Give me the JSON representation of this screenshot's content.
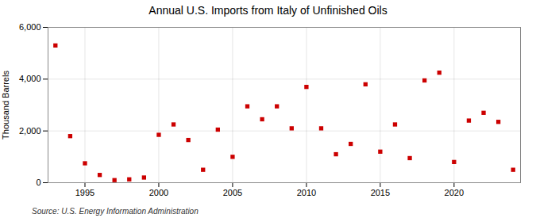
{
  "chart_data": {
    "type": "scatter",
    "title": "Annual U.S. Imports from Italy of Unfinished Oils",
    "ylabel": "Thousand Barrels",
    "source": "Source: U.S. Energy Information Administration",
    "x": [
      1993,
      1994,
      1995,
      1996,
      1997,
      1998,
      1999,
      2000,
      2001,
      2002,
      2003,
      2004,
      2005,
      2006,
      2007,
      2008,
      2009,
      2010,
      2011,
      2012,
      2013,
      2014,
      2015,
      2016,
      2017,
      2018,
      2019,
      2020,
      2021,
      2022,
      2023,
      2024
    ],
    "values": [
      5300,
      1800,
      750,
      300,
      100,
      130,
      200,
      1850,
      2250,
      1650,
      500,
      2050,
      1000,
      2950,
      2450,
      2950,
      2100,
      3700,
      2100,
      1100,
      1500,
      3800,
      1200,
      2250,
      950,
      3950,
      4250,
      800,
      2400,
      2700,
      2350,
      500
    ],
    "color": "#cc0000",
    "marker": "square",
    "xlim": [
      1992.5,
      2024.5
    ],
    "xticks": [
      1995,
      2000,
      2005,
      2010,
      2015,
      2020
    ],
    "ylim": [
      0,
      6000
    ],
    "yticks": [
      0,
      {
        "value": 2000,
        "label": "2,000"
      },
      {
        "value": 4000,
        "label": "4,000"
      },
      {
        "value": 6000,
        "label": "6,000"
      }
    ],
    "grid": true
  }
}
